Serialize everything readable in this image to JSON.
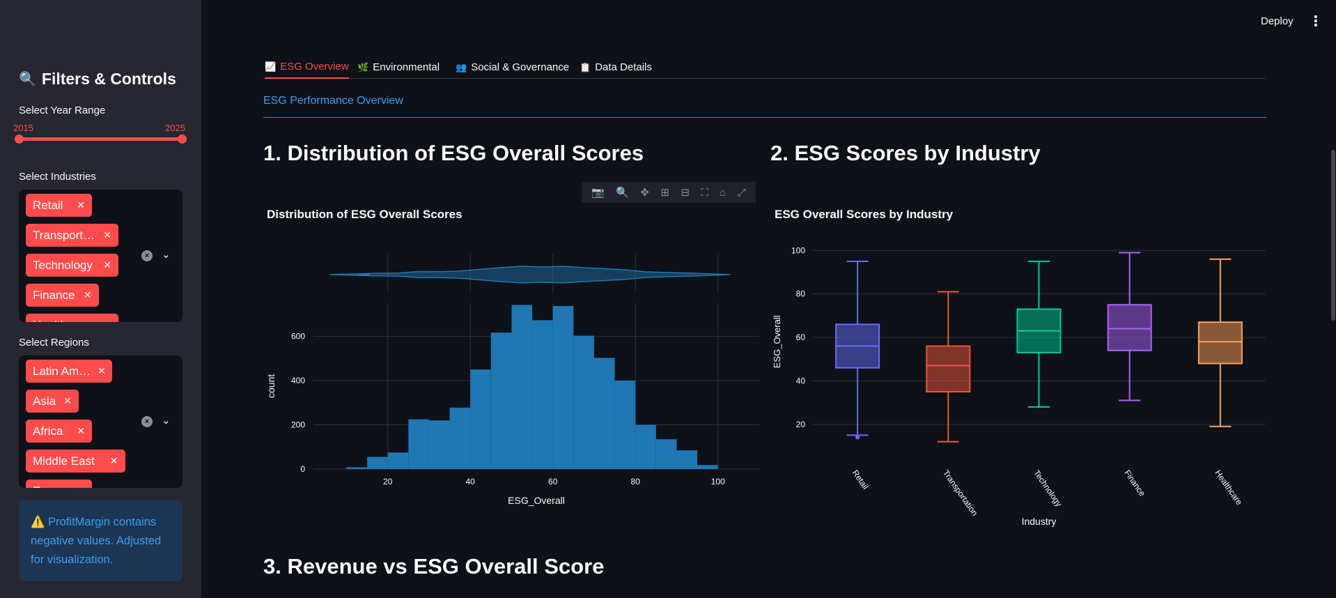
{
  "sidebar": {
    "title": "Filters & Controls",
    "title_icon": "magnifier-icon",
    "year_range": {
      "label": "Select Year Range",
      "min": "2015",
      "max": "2025"
    },
    "industries": {
      "label": "Select Industries",
      "tags": [
        "Retail",
        "Transport…",
        "Technology",
        "Finance",
        "Healthcare"
      ]
    },
    "regions": {
      "label": "Select Regions",
      "tags": [
        "Latin Am…",
        "Asia",
        "Africa",
        "Middle East",
        "Europe"
      ]
    },
    "alert": {
      "icon": "⚠️",
      "text": "ProfitMargin contains negative values. Adjusted for visualization."
    }
  },
  "header": {
    "deploy_label": "Deploy",
    "menu_icon": "⋮"
  },
  "tabs": [
    {
      "label": "ESG Overview",
      "icon": "📈",
      "active": true
    },
    {
      "label": "Environmental",
      "icon": "🌿",
      "active": false
    },
    {
      "label": "Social & Governance",
      "icon": "👥",
      "active": false
    },
    {
      "label": "Data Details",
      "icon": "📋",
      "active": false
    }
  ],
  "main": {
    "subheader": "ESG Performance Overview",
    "section1": "1. Distribution of ESG Overall Scores",
    "section2": "2. ESG Scores by Industry",
    "section3": "3. Revenue vs ESG Overall Score"
  },
  "chart_data": [
    {
      "type": "bar",
      "title": "Distribution of ESG Overall Scores",
      "xlabel": "ESG_Overall",
      "ylabel": "count",
      "xlim": [
        2,
        110
      ],
      "ylim": [
        0,
        750
      ],
      "xticks": [
        20,
        40,
        60,
        80,
        100
      ],
      "yticks": [
        0,
        200,
        400,
        600
      ],
      "bin_width": 5,
      "bins": [
        {
          "x0": 10,
          "count": 8
        },
        {
          "x0": 15,
          "count": 55
        },
        {
          "x0": 20,
          "count": 75
        },
        {
          "x0": 25,
          "count": 225
        },
        {
          "x0": 30,
          "count": 220
        },
        {
          "x0": 35,
          "count": 278
        },
        {
          "x0": 40,
          "count": 450
        },
        {
          "x0": 45,
          "count": 617
        },
        {
          "x0": 50,
          "count": 742
        },
        {
          "x0": 55,
          "count": 673
        },
        {
          "x0": 60,
          "count": 737
        },
        {
          "x0": 65,
          "count": 603
        },
        {
          "x0": 70,
          "count": 503
        },
        {
          "x0": 75,
          "count": 400
        },
        {
          "x0": 80,
          "count": 200
        },
        {
          "x0": 85,
          "count": 135
        },
        {
          "x0": 90,
          "count": 85
        },
        {
          "x0": 95,
          "count": 18
        }
      ],
      "marginal": "violin",
      "color": "#1f77b4",
      "grid": true
    },
    {
      "type": "box",
      "title": "ESG Overall Scores by Industry",
      "xlabel": "Industry",
      "ylabel": "ESG_Overall",
      "ylim": [
        10,
        103
      ],
      "yticks": [
        20,
        40,
        60,
        80,
        100
      ],
      "grid": true,
      "series": [
        {
          "name": "Retail",
          "color": "#636efa",
          "min": 15,
          "q1": 46,
          "median": 56,
          "q3": 66,
          "max": 95,
          "outliers": [
            14
          ]
        },
        {
          "name": "Transportation",
          "color": "#ef553b",
          "min": 12,
          "q1": 35,
          "median": 47,
          "q3": 56,
          "max": 81,
          "outliers": []
        },
        {
          "name": "Technology",
          "color": "#00cc96",
          "min": 28,
          "q1": 53,
          "median": 63,
          "q3": 73,
          "max": 95,
          "outliers": []
        },
        {
          "name": "Finance",
          "color": "#ab63fa",
          "min": 31,
          "q1": 54,
          "median": 64,
          "q3": 75,
          "max": 99,
          "outliers": []
        },
        {
          "name": "Healthcare",
          "color": "#ffa15a",
          "min": 19,
          "q1": 48,
          "median": 58,
          "q3": 67,
          "max": 96,
          "outliers": []
        }
      ]
    }
  ]
}
